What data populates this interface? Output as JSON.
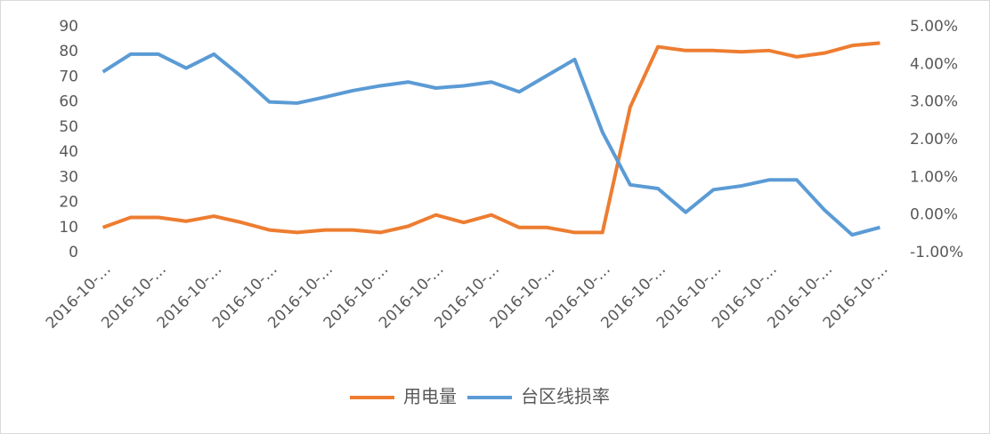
{
  "chart_data": {
    "type": "line",
    "categories": [
      "2016-10-…",
      null,
      "2016-10-…",
      null,
      "2016-10-…",
      null,
      "2016-10-…",
      null,
      "2016-10-…",
      null,
      "2016-10-…",
      null,
      "2016-10-…",
      null,
      "2016-10-…",
      null,
      "2016-10-…",
      null,
      "2016-10-…",
      null,
      "2016-10-…",
      null,
      "2016-10-…",
      null,
      "2016-10-…",
      null,
      "2016-10-…",
      null,
      "2016-10-…"
    ],
    "series": [
      {
        "name": "用电量",
        "color": "#ed7d31",
        "values": [
          10,
          14,
          14,
          12.5,
          14.5,
          12,
          9,
          8,
          9,
          9,
          8,
          10.5,
          15,
          12,
          15,
          10,
          10,
          8,
          8,
          58,
          82,
          80.5,
          80.5,
          80,
          80.5,
          78,
          79.5,
          82.5,
          83.5
        ]
      },
      {
        "name": "台区线损率",
        "color": "#5b9bd5",
        "axis": "y2",
        "values": [
          3.8,
          4.27,
          4.27,
          3.9,
          4.27,
          3.67,
          3.0,
          2.97,
          3.13,
          3.3,
          3.43,
          3.53,
          3.37,
          3.43,
          3.53,
          3.27,
          3.7,
          4.13,
          2.2,
          0.8,
          0.7,
          0.07,
          0.67,
          0.77,
          0.93,
          0.93,
          0.13,
          -0.53,
          -0.33
        ]
      }
    ],
    "ylim": [
      0,
      90
    ],
    "yticks": [
      0,
      10,
      20,
      30,
      40,
      50,
      60,
      70,
      80,
      90
    ],
    "y2lim": [
      -1,
      5
    ],
    "y2ticks": [
      {
        "value": -1,
        "label": "-1.00%"
      },
      {
        "value": 0,
        "label": "0.00%"
      },
      {
        "value": 1,
        "label": "1.00%"
      },
      {
        "value": 2,
        "label": "2.00%"
      },
      {
        "value": 3,
        "label": "3.00%"
      },
      {
        "value": 4,
        "label": "4.00%"
      },
      {
        "value": 5,
        "label": "5.00%"
      }
    ],
    "grid": false,
    "legend": "bottom"
  }
}
